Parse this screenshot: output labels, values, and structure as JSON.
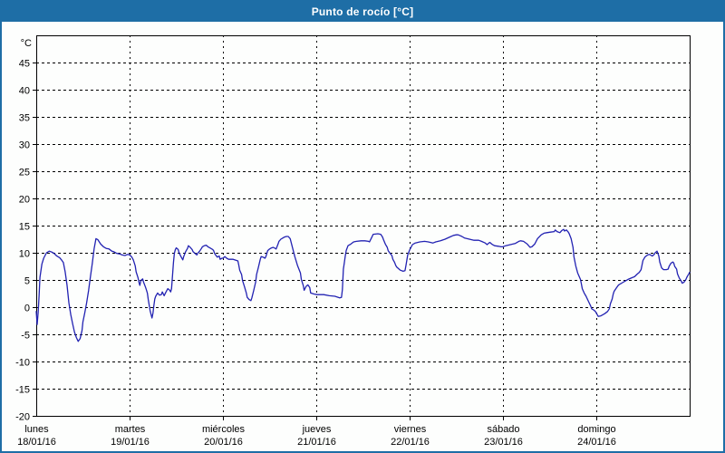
{
  "header": {
    "title": "Punto de rocío [°C]"
  },
  "colors": {
    "titlebar_bg": "#1e6ea6",
    "titlebar_text": "#ffffff",
    "window_border": "#1e6ea6",
    "line": "#2222b2",
    "grid": "#000000",
    "background": "#fdfefd"
  },
  "chart_data": {
    "type": "line",
    "title": "Punto de rocío [°C]",
    "unit_label": "°C",
    "ylabel": "°C",
    "ylim": [
      -20,
      50
    ],
    "yticks": [
      45,
      40,
      35,
      30,
      25,
      20,
      15,
      10,
      5,
      0,
      -5,
      -10,
      -15,
      -20
    ],
    "grid": true,
    "legend": "none",
    "xlim_days": [
      0,
      7
    ],
    "days": [
      {
        "weekday": "lunes",
        "date": "18/01/16"
      },
      {
        "weekday": "martes",
        "date": "19/01/16"
      },
      {
        "weekday": "miércoles",
        "date": "20/01/16"
      },
      {
        "weekday": "jueves",
        "date": "21/01/16"
      },
      {
        "weekday": "viernes",
        "date": "22/01/16"
      },
      {
        "weekday": "sábado",
        "date": "23/01/16"
      },
      {
        "weekday": "domingo",
        "date": "24/01/16"
      }
    ],
    "points": [
      [
        0.0,
        -0.8
      ],
      [
        0.01,
        -3.2
      ],
      [
        0.02,
        -1.0
      ],
      [
        0.03,
        2.0
      ],
      [
        0.04,
        5.5
      ],
      [
        0.06,
        7.9
      ],
      [
        0.08,
        9.0
      ],
      [
        0.11,
        10.0
      ],
      [
        0.14,
        10.3
      ],
      [
        0.17,
        10.1
      ],
      [
        0.19,
        9.9
      ],
      [
        0.22,
        9.4
      ],
      [
        0.25,
        9.1
      ],
      [
        0.27,
        8.7
      ],
      [
        0.29,
        8.2
      ],
      [
        0.31,
        6.5
      ],
      [
        0.33,
        4.0
      ],
      [
        0.35,
        0.8
      ],
      [
        0.37,
        -1.4
      ],
      [
        0.39,
        -3.1
      ],
      [
        0.41,
        -4.6
      ],
      [
        0.43,
        -5.6
      ],
      [
        0.45,
        -6.3
      ],
      [
        0.47,
        -5.8
      ],
      [
        0.49,
        -4.3
      ],
      [
        0.5,
        -2.7
      ],
      [
        0.52,
        -1.0
      ],
      [
        0.54,
        0.8
      ],
      [
        0.56,
        3.0
      ],
      [
        0.58,
        5.5
      ],
      [
        0.6,
        8.0
      ],
      [
        0.62,
        10.8
      ],
      [
        0.64,
        12.6
      ],
      [
        0.66,
        12.4
      ],
      [
        0.69,
        11.6
      ],
      [
        0.72,
        11.1
      ],
      [
        0.75,
        10.8
      ],
      [
        0.78,
        10.7
      ],
      [
        0.81,
        10.3
      ],
      [
        0.83,
        10.2
      ],
      [
        0.86,
        9.9
      ],
      [
        0.89,
        9.8
      ],
      [
        0.92,
        9.6
      ],
      [
        0.95,
        9.5
      ],
      [
        0.98,
        9.7
      ],
      [
        1.0,
        9.6
      ],
      [
        1.02,
        9.3
      ],
      [
        1.04,
        8.7
      ],
      [
        1.06,
        7.6
      ],
      [
        1.07,
        6.5
      ],
      [
        1.09,
        5.4
      ],
      [
        1.1,
        4.6
      ],
      [
        1.11,
        4.0
      ],
      [
        1.12,
        4.9
      ],
      [
        1.14,
        5.2
      ],
      [
        1.15,
        4.6
      ],
      [
        1.17,
        3.7
      ],
      [
        1.18,
        3.2
      ],
      [
        1.19,
        2.6
      ],
      [
        1.2,
        1.4
      ],
      [
        1.21,
        0.4
      ],
      [
        1.22,
        -0.7
      ],
      [
        1.24,
        -2.0
      ],
      [
        1.25,
        -1.1
      ],
      [
        1.26,
        0.3
      ],
      [
        1.27,
        1.5
      ],
      [
        1.28,
        2.0
      ],
      [
        1.3,
        2.6
      ],
      [
        1.32,
        2.2
      ],
      [
        1.34,
        2.3
      ],
      [
        1.35,
        2.8
      ],
      [
        1.37,
        2.1
      ],
      [
        1.39,
        2.8
      ],
      [
        1.41,
        3.4
      ],
      [
        1.43,
        3.1
      ],
      [
        1.44,
        2.8
      ],
      [
        1.45,
        3.4
      ],
      [
        1.46,
        5.9
      ],
      [
        1.47,
        8.2
      ],
      [
        1.48,
        9.9
      ],
      [
        1.49,
        10.6
      ],
      [
        1.5,
        10.9
      ],
      [
        1.52,
        10.6
      ],
      [
        1.53,
        10.0
      ],
      [
        1.55,
        9.3
      ],
      [
        1.57,
        8.7
      ],
      [
        1.58,
        9.3
      ],
      [
        1.6,
        10.2
      ],
      [
        1.62,
        10.8
      ],
      [
        1.63,
        11.3
      ],
      [
        1.65,
        11.0
      ],
      [
        1.67,
        10.6
      ],
      [
        1.68,
        10.2
      ],
      [
        1.7,
        9.9
      ],
      [
        1.72,
        9.6
      ],
      [
        1.73,
        9.9
      ],
      [
        1.75,
        10.3
      ],
      [
        1.77,
        10.8
      ],
      [
        1.78,
        11.1
      ],
      [
        1.8,
        11.3
      ],
      [
        1.82,
        11.4
      ],
      [
        1.84,
        11.1
      ],
      [
        1.86,
        10.9
      ],
      [
        1.89,
        10.6
      ],
      [
        1.9,
        10.4
      ],
      [
        1.91,
        9.9
      ],
      [
        1.93,
        9.4
      ],
      [
        1.94,
        9.2
      ],
      [
        1.96,
        9.4
      ],
      [
        1.97,
        8.8
      ],
      [
        1.99,
        9.0
      ],
      [
        2.0,
        9.0
      ],
      [
        2.02,
        9.3
      ],
      [
        2.04,
        9.0
      ],
      [
        2.06,
        8.8
      ],
      [
        2.11,
        8.8
      ],
      [
        2.16,
        8.5
      ],
      [
        2.17,
        7.7
      ],
      [
        2.18,
        6.8
      ],
      [
        2.2,
        6.0
      ],
      [
        2.21,
        4.9
      ],
      [
        2.23,
        3.8
      ],
      [
        2.25,
        2.6
      ],
      [
        2.26,
        1.8
      ],
      [
        2.28,
        1.4
      ],
      [
        2.3,
        1.2
      ],
      [
        2.31,
        1.7
      ],
      [
        2.33,
        3.1
      ],
      [
        2.35,
        4.6
      ],
      [
        2.36,
        6.0
      ],
      [
        2.38,
        7.3
      ],
      [
        2.4,
        8.8
      ],
      [
        2.41,
        9.3
      ],
      [
        2.43,
        9.2
      ],
      [
        2.45,
        9.0
      ],
      [
        2.46,
        9.3
      ],
      [
        2.48,
        10.4
      ],
      [
        2.5,
        10.7
      ],
      [
        2.52,
        10.9
      ],
      [
        2.54,
        11.0
      ],
      [
        2.57,
        10.7
      ],
      [
        2.59,
        11.6
      ],
      [
        2.6,
        12.1
      ],
      [
        2.62,
        12.5
      ],
      [
        2.64,
        12.7
      ],
      [
        2.66,
        12.9
      ],
      [
        2.68,
        13.0
      ],
      [
        2.7,
        13.0
      ],
      [
        2.72,
        12.6
      ],
      [
        2.74,
        11.3
      ],
      [
        2.77,
        9.3
      ],
      [
        2.8,
        7.6
      ],
      [
        2.83,
        6.3
      ],
      [
        2.84,
        5.1
      ],
      [
        2.86,
        4.0
      ],
      [
        2.87,
        3.1
      ],
      [
        2.89,
        3.8
      ],
      [
        2.91,
        4.1
      ],
      [
        2.93,
        3.6
      ],
      [
        2.94,
        2.6
      ],
      [
        2.98,
        2.4
      ],
      [
        3.01,
        2.3
      ],
      [
        3.08,
        2.3
      ],
      [
        3.14,
        2.1
      ],
      [
        3.2,
        2.0
      ],
      [
        3.25,
        1.7
      ],
      [
        3.27,
        1.8
      ],
      [
        3.28,
        3.2
      ],
      [
        3.29,
        7.0
      ],
      [
        3.3,
        8.1
      ],
      [
        3.31,
        9.3
      ],
      [
        3.32,
        10.4
      ],
      [
        3.34,
        11.3
      ],
      [
        3.37,
        11.6
      ],
      [
        3.4,
        12.0
      ],
      [
        3.43,
        12.1
      ],
      [
        3.48,
        12.2
      ],
      [
        3.52,
        12.2
      ],
      [
        3.56,
        12.1
      ],
      [
        3.57,
        12.0
      ],
      [
        3.59,
        12.7
      ],
      [
        3.61,
        13.4
      ],
      [
        3.66,
        13.5
      ],
      [
        3.69,
        13.4
      ],
      [
        3.71,
        12.9
      ],
      [
        3.72,
        12.4
      ],
      [
        3.74,
        11.6
      ],
      [
        3.76,
        11.0
      ],
      [
        3.77,
        10.4
      ],
      [
        3.79,
        9.9
      ],
      [
        3.81,
        9.5
      ],
      [
        3.82,
        8.8
      ],
      [
        3.84,
        8.2
      ],
      [
        3.85,
        7.7
      ],
      [
        3.86,
        7.4
      ],
      [
        3.88,
        7.1
      ],
      [
        3.9,
        6.8
      ],
      [
        3.93,
        6.6
      ],
      [
        3.95,
        6.7
      ],
      [
        3.96,
        7.6
      ],
      [
        3.98,
        9.6
      ],
      [
        4.0,
        10.5
      ],
      [
        4.03,
        11.5
      ],
      [
        4.06,
        11.8
      ],
      [
        4.11,
        12.0
      ],
      [
        4.16,
        12.1
      ],
      [
        4.2,
        12.0
      ],
      [
        4.25,
        11.8
      ],
      [
        4.28,
        12.0
      ],
      [
        4.33,
        12.2
      ],
      [
        4.38,
        12.5
      ],
      [
        4.43,
        12.9
      ],
      [
        4.47,
        13.2
      ],
      [
        4.5,
        13.3
      ],
      [
        4.52,
        13.3
      ],
      [
        4.56,
        13.0
      ],
      [
        4.59,
        12.7
      ],
      [
        4.64,
        12.5
      ],
      [
        4.69,
        12.3
      ],
      [
        4.74,
        12.3
      ],
      [
        4.77,
        12.1
      ],
      [
        4.81,
        11.8
      ],
      [
        4.83,
        11.5
      ],
      [
        4.85,
        11.8
      ],
      [
        4.86,
        11.9
      ],
      [
        4.88,
        11.6
      ],
      [
        4.91,
        11.3
      ],
      [
        4.95,
        11.2
      ],
      [
        4.98,
        11.1
      ],
      [
        5.0,
        11.1
      ],
      [
        5.03,
        11.3
      ],
      [
        5.08,
        11.5
      ],
      [
        5.13,
        11.7
      ],
      [
        5.17,
        12.1
      ],
      [
        5.19,
        12.2
      ],
      [
        5.22,
        12.1
      ],
      [
        5.26,
        11.6
      ],
      [
        5.29,
        11.0
      ],
      [
        5.31,
        11.1
      ],
      [
        5.34,
        11.6
      ],
      [
        5.37,
        12.6
      ],
      [
        5.41,
        13.3
      ],
      [
        5.44,
        13.6
      ],
      [
        5.47,
        13.7
      ],
      [
        5.51,
        13.8
      ],
      [
        5.55,
        13.9
      ],
      [
        5.56,
        14.2
      ],
      [
        5.58,
        13.9
      ],
      [
        5.61,
        13.7
      ],
      [
        5.63,
        14.1
      ],
      [
        5.65,
        14.3
      ],
      [
        5.66,
        14.0
      ],
      [
        5.68,
        14.2
      ],
      [
        5.7,
        13.8
      ],
      [
        5.71,
        13.5
      ],
      [
        5.73,
        12.6
      ],
      [
        5.75,
        11.0
      ],
      [
        5.76,
        9.3
      ],
      [
        5.78,
        7.6
      ],
      [
        5.8,
        6.3
      ],
      [
        5.83,
        5.1
      ],
      [
        5.84,
        4.3
      ],
      [
        5.85,
        3.4
      ],
      [
        5.87,
        2.6
      ],
      [
        5.89,
        2.0
      ],
      [
        5.92,
        0.9
      ],
      [
        5.94,
        0.2
      ],
      [
        5.95,
        -0.3
      ],
      [
        5.97,
        -0.5
      ],
      [
        5.99,
        -0.8
      ],
      [
        6.0,
        -1.1
      ],
      [
        6.02,
        -1.7
      ],
      [
        6.05,
        -1.6
      ],
      [
        6.09,
        -1.2
      ],
      [
        6.12,
        -0.8
      ],
      [
        6.14,
        -0.3
      ],
      [
        6.15,
        0.6
      ],
      [
        6.17,
        1.5
      ],
      [
        6.18,
        2.3
      ],
      [
        6.19,
        2.9
      ],
      [
        6.21,
        3.4
      ],
      [
        6.23,
        3.9
      ],
      [
        6.24,
        4.1
      ],
      [
        6.28,
        4.5
      ],
      [
        6.31,
        4.8
      ],
      [
        6.34,
        5.1
      ],
      [
        6.38,
        5.4
      ],
      [
        6.41,
        5.6
      ],
      [
        6.44,
        6.1
      ],
      [
        6.46,
        6.4
      ],
      [
        6.48,
        6.9
      ],
      [
        6.49,
        7.8
      ],
      [
        6.5,
        8.6
      ],
      [
        6.52,
        9.2
      ],
      [
        6.55,
        9.6
      ],
      [
        6.57,
        9.7
      ],
      [
        6.6,
        9.4
      ],
      [
        6.62,
        9.7
      ],
      [
        6.63,
        10.0
      ],
      [
        6.65,
        10.3
      ],
      [
        6.67,
        9.4
      ],
      [
        6.68,
        8.3
      ],
      [
        6.7,
        7.2
      ],
      [
        6.72,
        6.9
      ],
      [
        6.75,
        6.9
      ],
      [
        6.77,
        7.0
      ],
      [
        6.78,
        7.5
      ],
      [
        6.8,
        8.1
      ],
      [
        6.82,
        8.3
      ],
      [
        6.83,
        8.1
      ],
      [
        6.84,
        7.5
      ],
      [
        6.86,
        7.0
      ],
      [
        6.87,
        6.1
      ],
      [
        6.89,
        5.3
      ],
      [
        6.91,
        4.8
      ],
      [
        6.92,
        4.4
      ],
      [
        6.94,
        4.6
      ],
      [
        6.96,
        5.1
      ],
      [
        6.97,
        5.5
      ],
      [
        6.99,
        6.1
      ],
      [
        7.0,
        6.4
      ]
    ]
  }
}
